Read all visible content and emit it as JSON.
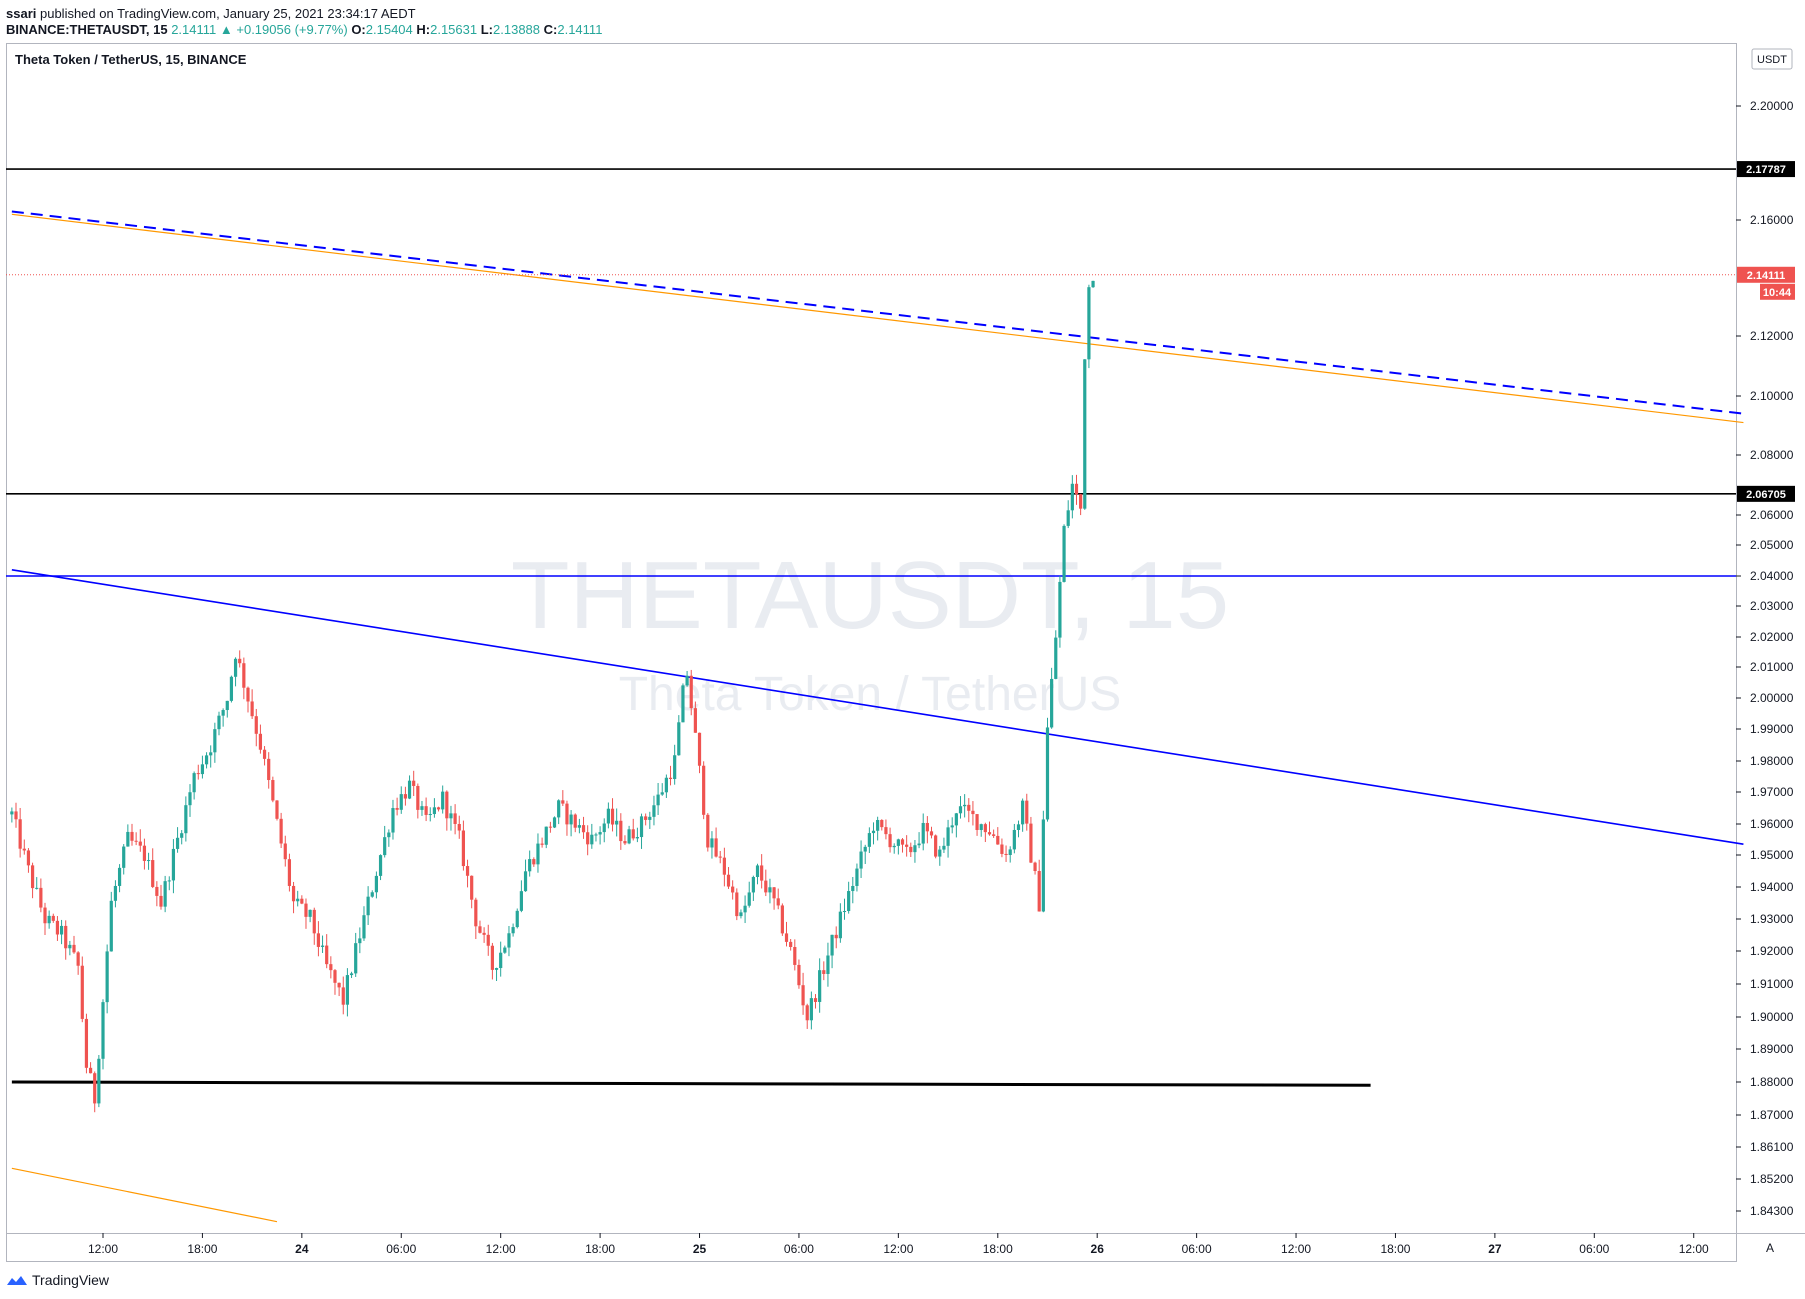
{
  "header": {
    "publisher": "ssari",
    "published_text": " published on TradingView.com, January 25, 2021 23:34:17 AEDT",
    "symbol": "BINANCE:THETAUSDT, 15",
    "last": "2.14111",
    "change": "+0.19056 (+9.77%)",
    "o_label": "O:",
    "o_val": "2.15404",
    "h_label": "H:",
    "h_val": "2.15631",
    "l_label": "L:",
    "l_val": "2.13888",
    "c_label": "C:",
    "c_val": "2.14111"
  },
  "legend_title": "Theta Token / TetherUS, 15, BINANCE",
  "watermark": {
    "line1": "THETAUSDT, 15",
    "line2": "Theta Token / TetherUS"
  },
  "currency": "USDT",
  "auto_button": "A",
  "footer_brand": "TradingView",
  "colors": {
    "up": "#26a69a",
    "down": "#ef5350",
    "blue": "#0000ff",
    "orange": "#ff9800",
    "black": "#000000"
  },
  "chart_data": {
    "type": "candlestick",
    "y_ticks": [
      "2.20000",
      "2.16000",
      "2.12000",
      "2.10000",
      "2.08000",
      "2.06000",
      "2.05000",
      "2.04000",
      "2.03000",
      "2.02000",
      "2.01000",
      "2.00000",
      "1.99000",
      "1.98000",
      "1.97000",
      "1.96000",
      "1.95000",
      "1.94000",
      "1.93000",
      "1.92000",
      "1.91000",
      "1.90000",
      "1.89000",
      "1.88000",
      "1.87000",
      "1.86100",
      "1.85200",
      "1.84300"
    ],
    "x_ticks": [
      {
        "label": "12:00",
        "t": 12
      },
      {
        "label": "18:00",
        "t": 18
      },
      {
        "label": "24",
        "t": 24,
        "bold": true
      },
      {
        "label": "06:00",
        "t": 30
      },
      {
        "label": "12:00",
        "t": 36
      },
      {
        "label": "18:00",
        "t": 42
      },
      {
        "label": "25",
        "t": 48,
        "bold": true
      },
      {
        "label": "06:00",
        "t": 54
      },
      {
        "label": "12:00",
        "t": 60
      },
      {
        "label": "18:00",
        "t": 66
      },
      {
        "label": "26",
        "t": 72,
        "bold": true
      },
      {
        "label": "06:00",
        "t": 78
      },
      {
        "label": "12:00",
        "t": 84
      },
      {
        "label": "18:00",
        "t": 90
      },
      {
        "label": "27",
        "t": 96,
        "bold": true
      },
      {
        "label": "06:00",
        "t": 102
      },
      {
        "label": "12:00",
        "t": 108
      }
    ],
    "price_labels": [
      {
        "value": 2.17787,
        "text": "2.17787",
        "style": "black"
      },
      {
        "value": 2.14111,
        "text": "2.14111",
        "style": "red"
      },
      {
        "value": 2.06705,
        "text": "2.06705",
        "style": "black"
      }
    ],
    "countdown": "10:44",
    "horizontal_lines": [
      {
        "value": 2.17787,
        "color": "#000000"
      },
      {
        "value": 2.06705,
        "color": "#000000"
      },
      {
        "value": 2.04,
        "color": "#0000ff"
      }
    ],
    "trend_lines": [
      {
        "t1": 6.5,
        "p1": 1.88,
        "t2": 88.5,
        "p2": 1.879,
        "color": "#000000",
        "width": 3
      },
      {
        "t1": 6.5,
        "p1": 2.042,
        "t2": 111,
        "p2": 1.9535,
        "color": "#0000ff",
        "width": 1.6
      },
      {
        "t1": 6.5,
        "p1": 2.163,
        "t2": 111,
        "p2": 2.094,
        "color": "#0000ff",
        "width": 2,
        "dashed": true
      },
      {
        "t1": 6.5,
        "p1": 2.162,
        "t2": 111,
        "p2": 2.091,
        "color": "#ff9800",
        "width": 1.2
      },
      {
        "t1": 6.5,
        "p1": 1.855,
        "t2": 22.5,
        "p2": 1.84,
        "color": "#ff9800",
        "width": 1.2
      }
    ],
    "anchors": [
      [
        6.5,
        1.963
      ],
      [
        7.5,
        1.945
      ],
      [
        8.5,
        1.93
      ],
      [
        9.5,
        1.925
      ],
      [
        10.5,
        1.915
      ],
      [
        11.0,
        1.885
      ],
      [
        11.5,
        1.875
      ],
      [
        12.5,
        1.935
      ],
      [
        13.5,
        1.955
      ],
      [
        14.5,
        1.95
      ],
      [
        15.5,
        1.935
      ],
      [
        16.5,
        1.955
      ],
      [
        17.5,
        1.975
      ],
      [
        18.5,
        1.985
      ],
      [
        19.5,
        2.0
      ],
      [
        20.0,
        2.015
      ],
      [
        20.5,
        2.005
      ],
      [
        21.5,
        1.985
      ],
      [
        22.5,
        1.96
      ],
      [
        23.5,
        1.935
      ],
      [
        24.5,
        1.93
      ],
      [
        25.5,
        1.915
      ],
      [
        26.5,
        1.905
      ],
      [
        27.5,
        1.925
      ],
      [
        28.5,
        1.945
      ],
      [
        29.5,
        1.965
      ],
      [
        30.5,
        1.972
      ],
      [
        31.5,
        1.96
      ],
      [
        32.5,
        1.968
      ],
      [
        33.5,
        1.955
      ],
      [
        34.5,
        1.93
      ],
      [
        35.5,
        1.915
      ],
      [
        36.5,
        1.925
      ],
      [
        37.5,
        1.945
      ],
      [
        38.5,
        1.955
      ],
      [
        39.5,
        1.965
      ],
      [
        40.5,
        1.96
      ],
      [
        41.5,
        1.955
      ],
      [
        42.5,
        1.962
      ],
      [
        43.5,
        1.955
      ],
      [
        44.5,
        1.96
      ],
      [
        45.5,
        1.968
      ],
      [
        46.5,
        1.98
      ],
      [
        47.2,
        2.01
      ],
      [
        47.8,
        1.985
      ],
      [
        48.5,
        1.955
      ],
      [
        49.5,
        1.945
      ],
      [
        50.5,
        1.93
      ],
      [
        51.5,
        1.945
      ],
      [
        52.5,
        1.935
      ],
      [
        53.5,
        1.92
      ],
      [
        54.5,
        1.9
      ],
      [
        55.5,
        1.915
      ],
      [
        56.5,
        1.93
      ],
      [
        57.5,
        1.945
      ],
      [
        58.5,
        1.96
      ],
      [
        59.5,
        1.955
      ],
      [
        60.5,
        1.95
      ],
      [
        61.5,
        1.958
      ],
      [
        62.5,
        1.95
      ],
      [
        63.5,
        1.965
      ],
      [
        64.5,
        1.962
      ],
      [
        65.5,
        1.958
      ],
      [
        66.5,
        1.95
      ],
      [
        67.5,
        1.965
      ],
      [
        68.5,
        1.935
      ],
      [
        69.0,
        1.99
      ],
      [
        69.5,
        2.02
      ],
      [
        70.0,
        2.055
      ],
      [
        70.5,
        2.07
      ],
      [
        71.0,
        2.062
      ],
      [
        71.3,
        2.125
      ],
      [
        71.6,
        2.143
      ],
      [
        71.9,
        2.141
      ]
    ]
  }
}
